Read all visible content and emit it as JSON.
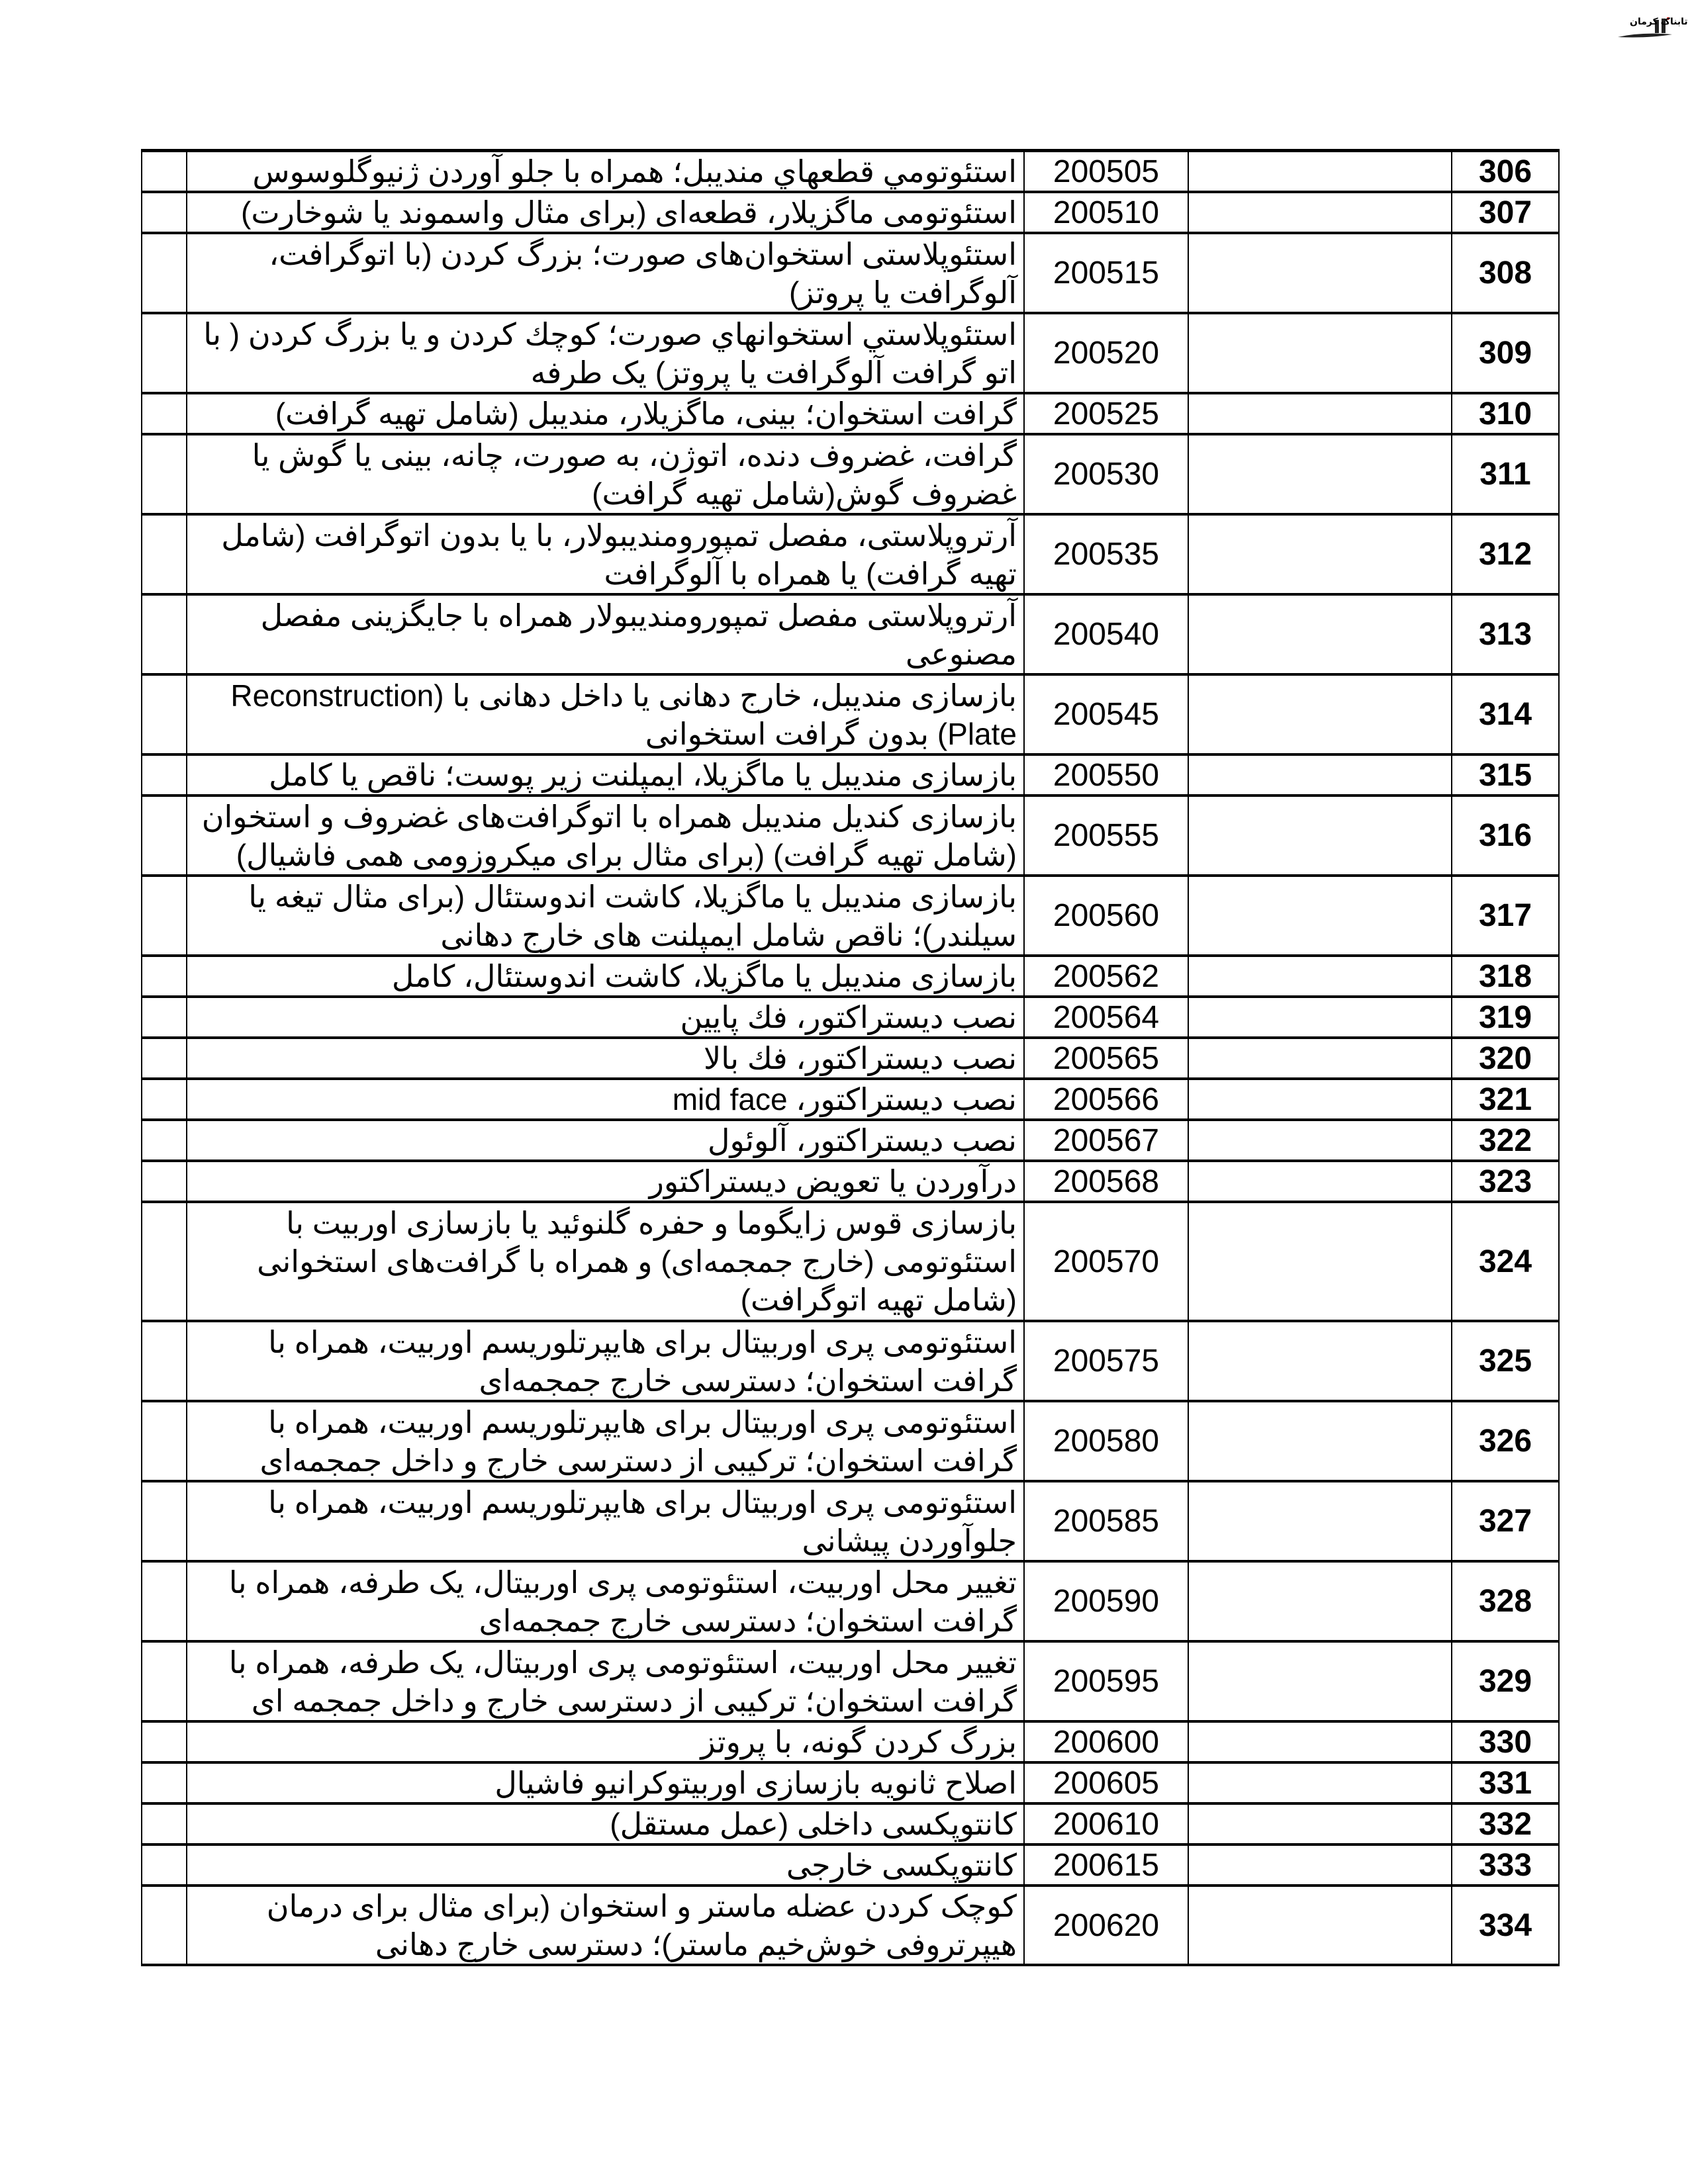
{
  "header": {
    "logo_text": "تابناک کرمان"
  },
  "table": {
    "rows": [
      {
        "num": "306",
        "code": "200505",
        "desc": "استئوتومي قطعهاي منديبل؛ همراه با جلو آوردن ژنيوگلوسوس"
      },
      {
        "num": "307",
        "code": "200510",
        "desc": "استئوتومی ماگزیلار، قطعه‌ای (برای مثال واسموند یا شوخارت)"
      },
      {
        "num": "308",
        "code": "200515",
        "desc": "استئوپلاستی استخوان‌های صورت؛ بزرگ کردن (با اتوگرافت، آلوگرافت یا پروتز)"
      },
      {
        "num": "309",
        "code": "200520",
        "desc": "استئوپلاستي استخوانهاي صورت؛ كوچك كردن و یا بزرگ کردن ( با اتو گرافت آلوگرافت یا پروتز) یک طرفه"
      },
      {
        "num": "310",
        "code": "200525",
        "desc": "گرافت استخوان؛ بینی، ماگزیلار، مندیبل (شامل تهیه گرافت)"
      },
      {
        "num": "311",
        "code": "200530",
        "desc": "گرافت، غضروف دنده، اتوژن، به صورت، چانه، بینی یا گوش یا غضروف گوش(شامل تهیه گرافت)"
      },
      {
        "num": "312",
        "code": "200535",
        "desc": "آرتروپلاستی، مفصل تمپورومندیبولار، با یا بدون اتوگرافت (شامل تهیه گرافت) یا همراه با آلوگرافت"
      },
      {
        "num": "313",
        "code": "200540",
        "desc": "آرتروپلاستی مفصل تمپورومندیبولار همراه با جایگزینی مفصل مصنوعی"
      },
      {
        "num": "314",
        "code": "200545",
        "desc": "بازسازی مندیبل، خارج دهانی یا داخل دهانی با (Reconstruction Plate) بدون گرافت استخوانی"
      },
      {
        "num": "315",
        "code": "200550",
        "desc": "بازسازی مندیبل یا ماگزیلا، ایمپلنت زیر پوست؛ ناقص یا کامل"
      },
      {
        "num": "316",
        "code": "200555",
        "desc": "بازسازی کندیل مندیبل همراه با اتوگرافت‌های غضروف و استخوان (شامل تهیه گرافت) (برای مثال برای میکروزومی همی فاشیال)"
      },
      {
        "num": "317",
        "code": "200560",
        "desc": "بازسازی مندیبل یا ماگزیلا، کاشت اندوستئال (برای مثال تیغه یا سیلندر)؛ ناقص شامل ایمپلنت های خارج دهانی"
      },
      {
        "num": "318",
        "code": "200562",
        "desc": "بازسازی مندیبل یا ماگزیلا، کاشت اندوستئال، کامل"
      },
      {
        "num": "319",
        "code": "200564",
        "desc": "نصب دیستراکتور، فك پایین"
      },
      {
        "num": "320",
        "code": "200565",
        "desc": "نصب دیستراکتور، فك بالا"
      },
      {
        "num": "321",
        "code": "200566",
        "desc": "نصب دیستراکتور، mid face"
      },
      {
        "num": "322",
        "code": "200567",
        "desc": "نصب دیستراکتور، آلوئول"
      },
      {
        "num": "323",
        "code": "200568",
        "desc": "درآوردن یا تعویض دیستراکتور"
      },
      {
        "num": "324",
        "code": "200570",
        "desc": "بازسازی قوس زایگوما و حفره گلنوئید یا بازسازی اوربیت با استئوتومی (خارج جمجمه‌ای) و همراه با گرافت‌های استخوانی (شامل تهیه اتوگرافت)"
      },
      {
        "num": "325",
        "code": "200575",
        "desc": "استئوتومی پری اوربیتال برای هایپرتلوریسم اوربیت، همراه با گرافت استخوان؛ دسترسی خارج جمجمه‌ای"
      },
      {
        "num": "326",
        "code": "200580",
        "desc": "استئوتومی پری اوربیتال برای هایپرتلوریسم اوربیت، همراه با گرافت استخوان؛ ترکیبی از دسترسی خارج و داخل جمجمه‌ای"
      },
      {
        "num": "327",
        "code": "200585",
        "desc": "استئوتومی پری اوربیتال برای هایپرتلوریسم اوربیت، همراه با جلوآوردن پیشانی"
      },
      {
        "num": "328",
        "code": "200590",
        "desc": "تغییر محل اوربیت، استئوتومی پری اوربیتال، یک طرفه، همراه با گرافت استخوان؛ دسترسی خارج جمجمه‌ای"
      },
      {
        "num": "329",
        "code": "200595",
        "desc": "تغییر محل اوربیت، استئوتومی پری اوربیتال، یک طرفه، همراه با گرافت استخوان؛ ترکیبی از دسترسی خارج و داخل جمجمه ای"
      },
      {
        "num": "330",
        "code": "200600",
        "desc": "بزرگ کردن گونه، با پروتز"
      },
      {
        "num": "331",
        "code": "200605",
        "desc": "اصلاح ثانویه بازسازی اوربیتوکرانیو فاشیال"
      },
      {
        "num": "332",
        "code": "200610",
        "desc": "کانتوپکسی داخلی (عمل مستقل)"
      },
      {
        "num": "333",
        "code": "200615",
        "desc": "کانتوپکسی خارجی"
      },
      {
        "num": "334",
        "code": "200620",
        "desc": "کوچک کردن عضله ماستر و استخوان (برای مثال برای درمان هیپرتروفی خوش‌خیم ماستر)؛ دسترسی خارج دهانی"
      }
    ]
  }
}
